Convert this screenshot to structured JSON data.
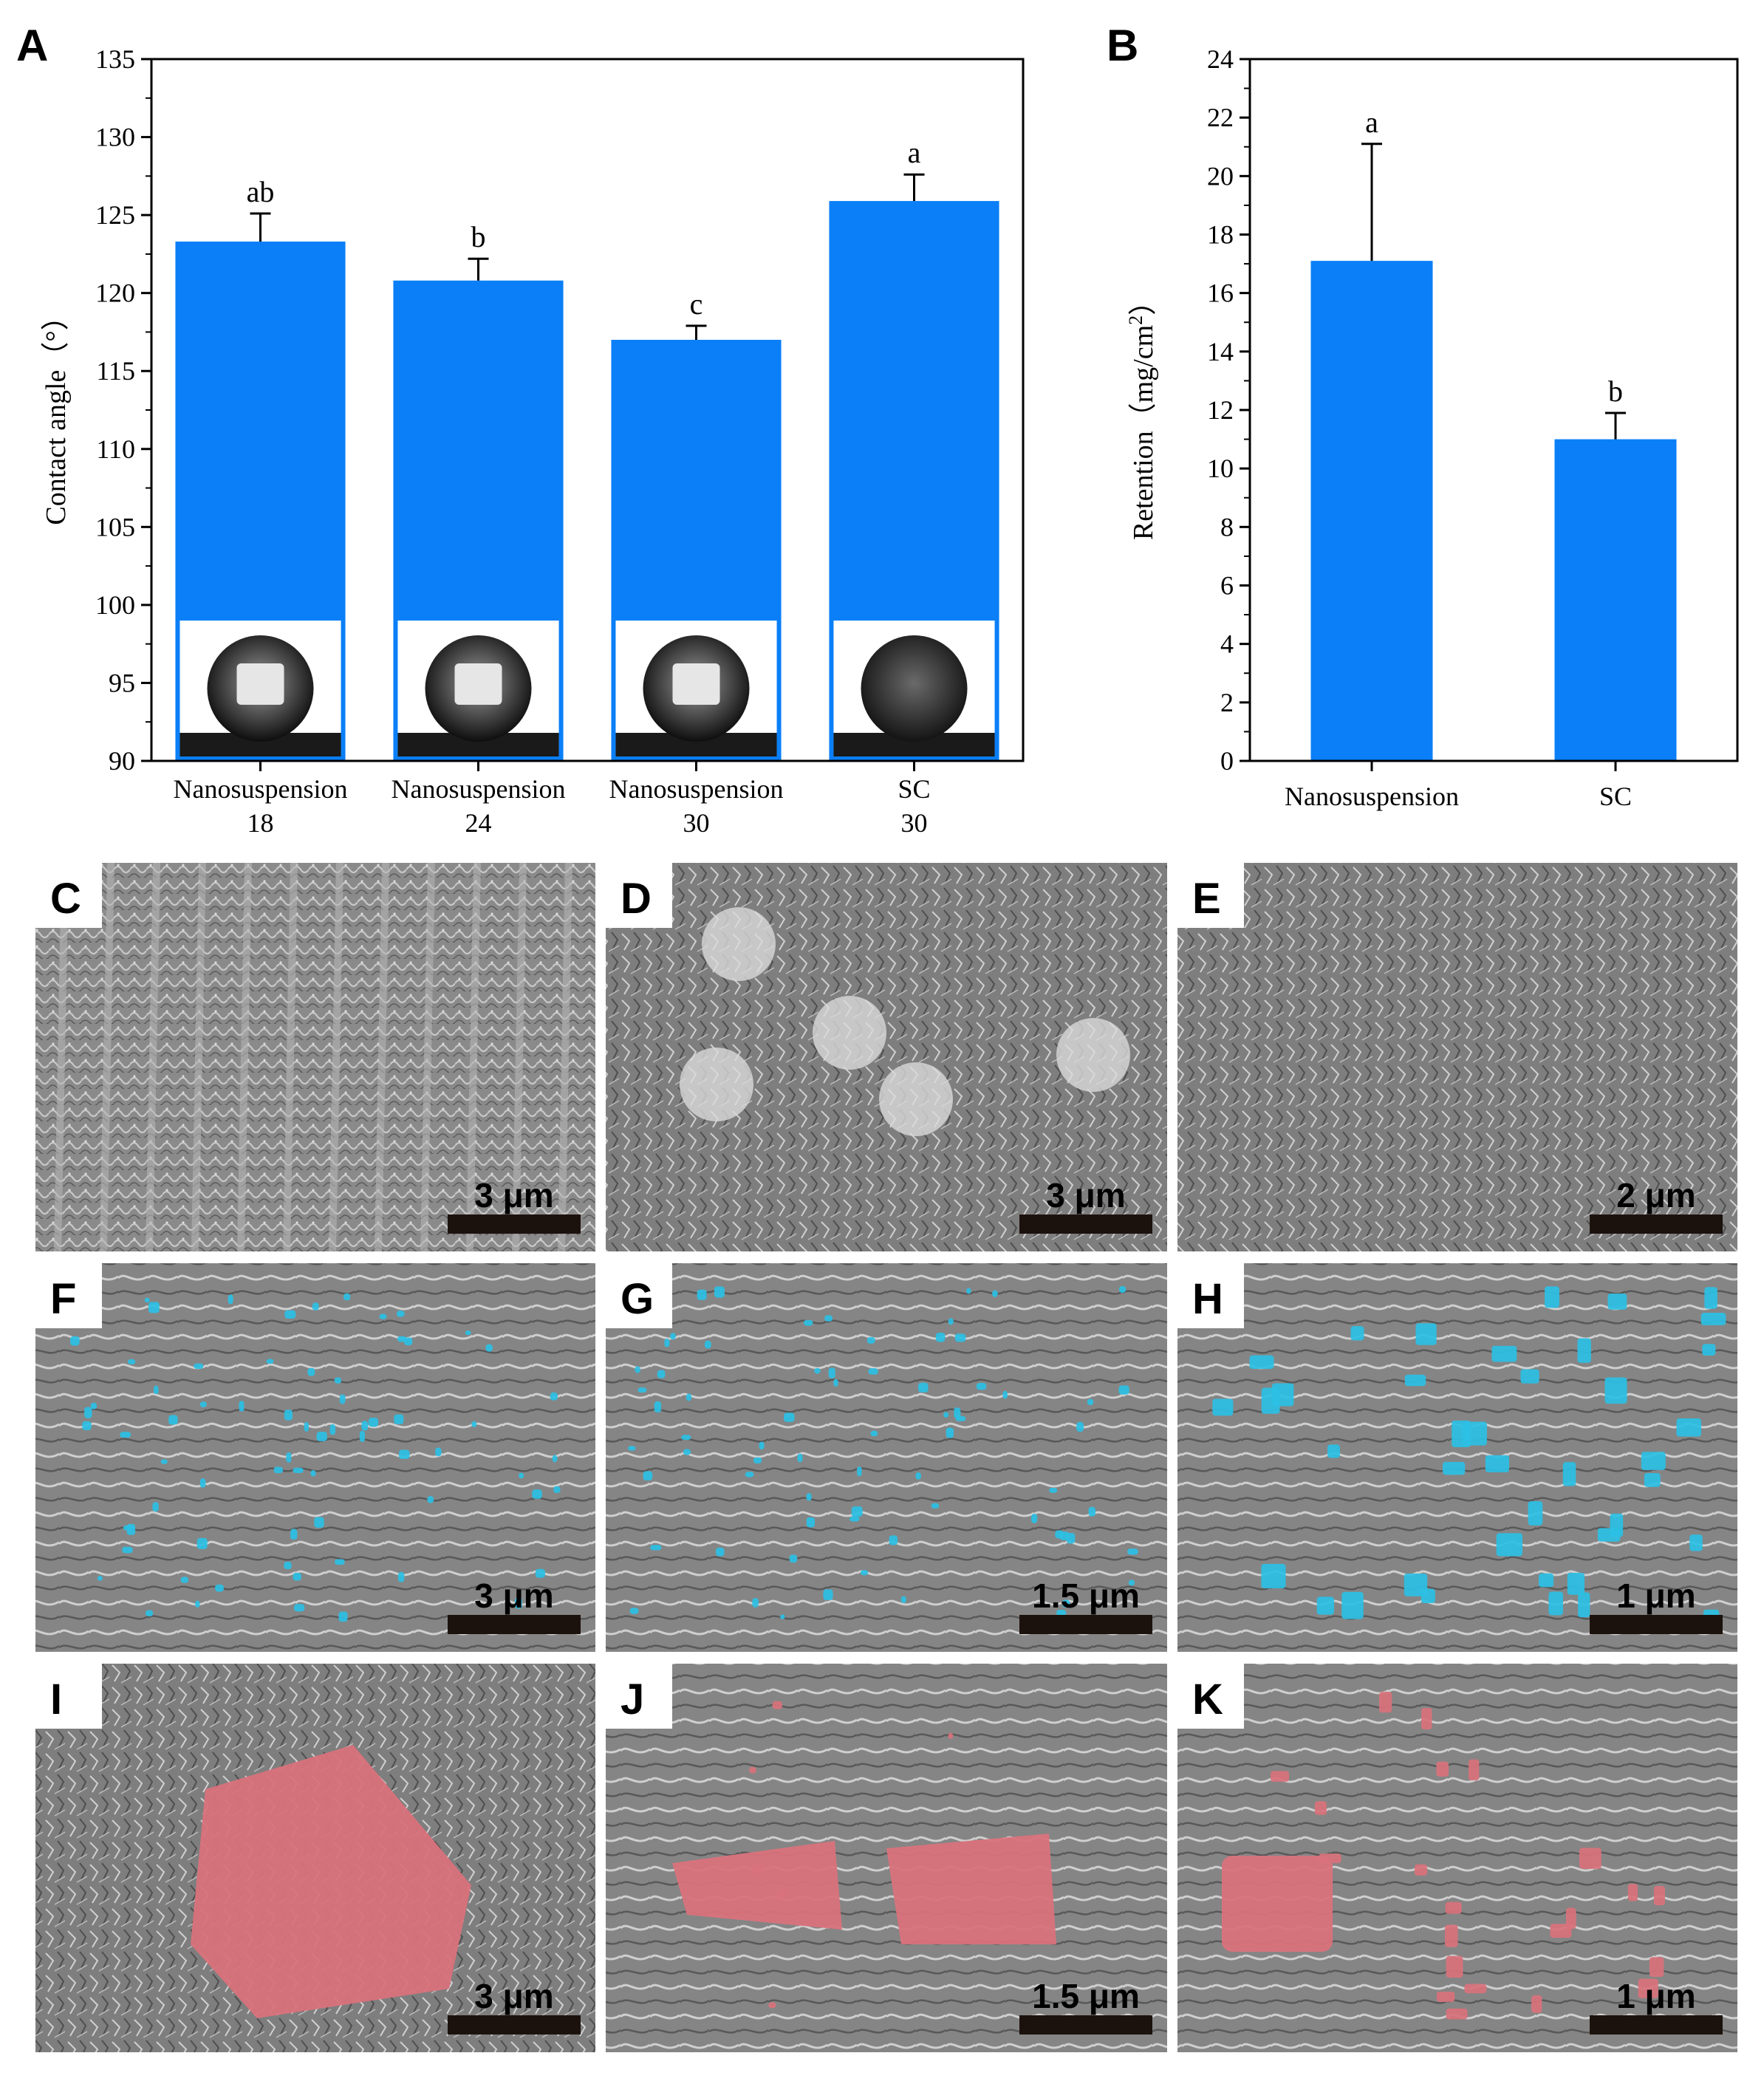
{
  "colors": {
    "bar": "#0a7ff7",
    "cyan_overlay": "#2bc0e4",
    "red_overlay": "#d9727c",
    "sem_gray": "#8c8c8c"
  },
  "chart_data": [
    {
      "panel": "A",
      "type": "bar",
      "ylabel": "Contact angle（°）",
      "ylim": [
        90,
        135
      ],
      "yticks": [
        90,
        95,
        100,
        105,
        110,
        115,
        120,
        125,
        130,
        135
      ],
      "categories": [
        {
          "line1": "Nanosuspension",
          "line2": "18"
        },
        {
          "line1": "Nanosuspension",
          "line2": "24"
        },
        {
          "line1": "Nanosuspension",
          "line2": "30"
        },
        {
          "line1": "SC",
          "line2": "30"
        }
      ],
      "values": [
        123.3,
        120.8,
        117.0,
        125.9
      ],
      "errors": [
        1.8,
        1.4,
        0.9,
        1.7
      ],
      "significance": [
        "ab",
        "b",
        "c",
        "a"
      ],
      "inset": "droplet photographs at bar bases",
      "grid": false
    },
    {
      "panel": "B",
      "type": "bar",
      "ylabel": "Retention（mg/cm²）",
      "ylim": [
        0,
        24
      ],
      "yticks": [
        0,
        2,
        4,
        6,
        8,
        10,
        12,
        14,
        16,
        18,
        20,
        22,
        24
      ],
      "categories": [
        "Nanosuspension",
        "SC"
      ],
      "values": [
        17.1,
        11.0
      ],
      "errors": [
        4.0,
        0.9
      ],
      "significance": [
        "a",
        "b"
      ],
      "grid": false
    }
  ],
  "images": [
    {
      "letter": "C",
      "scale": "3 μm",
      "overlay": "none"
    },
    {
      "letter": "D",
      "scale": "3 μm",
      "overlay": "none"
    },
    {
      "letter": "E",
      "scale": "2 μm",
      "overlay": "none"
    },
    {
      "letter": "F",
      "scale": "3 μm",
      "overlay": "cyan"
    },
    {
      "letter": "G",
      "scale": "1.5 μm",
      "overlay": "cyan"
    },
    {
      "letter": "H",
      "scale": "1 μm",
      "overlay": "cyan"
    },
    {
      "letter": "I",
      "scale": "3 μm",
      "overlay": "red"
    },
    {
      "letter": "J",
      "scale": "1.5 μm",
      "overlay": "red"
    },
    {
      "letter": "K",
      "scale": "1 μm",
      "overlay": "red"
    }
  ]
}
